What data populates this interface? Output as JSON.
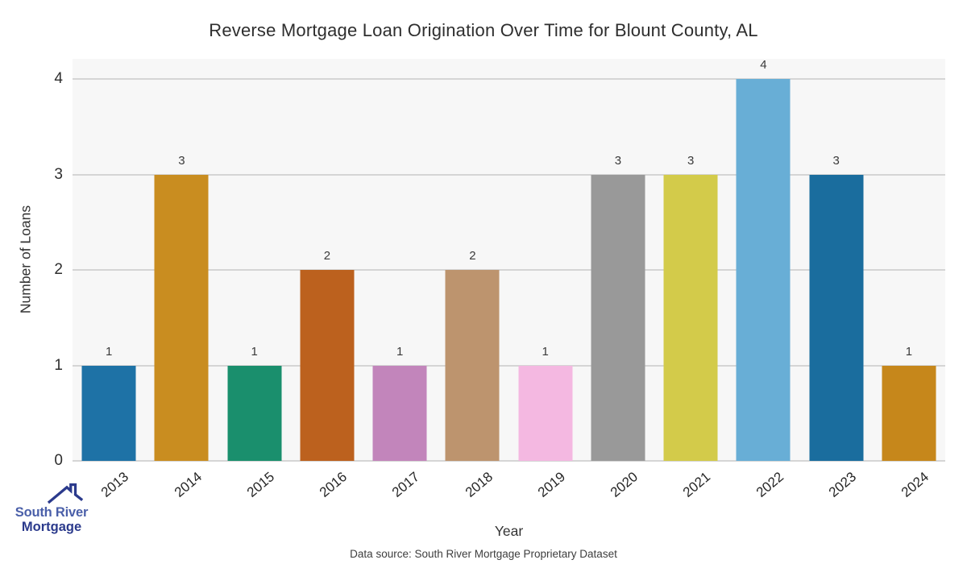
{
  "chart_data": {
    "type": "bar",
    "title": "Reverse Mortgage Loan Origination Over Time for Blount County, AL",
    "xlabel": "Year",
    "ylabel": "Number of Loans",
    "categories": [
      "2013",
      "2014",
      "2015",
      "2016",
      "2017",
      "2018",
      "2019",
      "2020",
      "2021",
      "2022",
      "2023",
      "2024"
    ],
    "values": [
      1,
      3,
      1,
      2,
      1,
      2,
      1,
      3,
      3,
      4,
      3,
      1
    ],
    "bar_colors": [
      "#1e72a6",
      "#c98d20",
      "#1a8f6d",
      "#bc611e",
      "#c285bb",
      "#bd946e",
      "#f4b8e1",
      "#999999",
      "#d3cb4a",
      "#68aed6",
      "#1a6d9e",
      "#c6871b"
    ],
    "ylim": [
      0,
      4
    ],
    "yticks": [
      0,
      1,
      2,
      3,
      4
    ],
    "grid": true,
    "legend": "none",
    "plot_bg": "#f7f7f7",
    "grid_color": "#d5d5d5"
  },
  "footer": {
    "data_source": "Data source: South River Mortgage Proprietary Dataset"
  },
  "logo": {
    "line1": "South River",
    "line2": "Mortgage",
    "color1": "#4a5fa9",
    "color2": "#2b3a8c"
  }
}
